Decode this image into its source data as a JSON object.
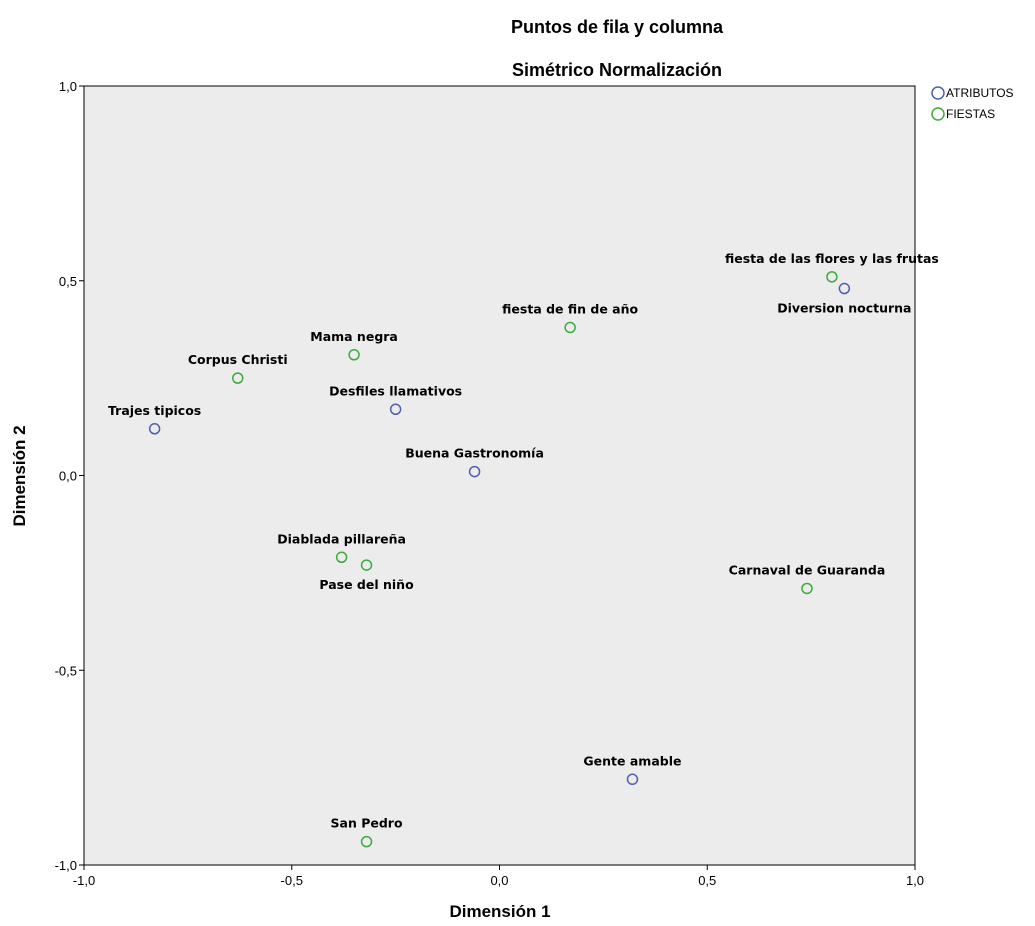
{
  "chart_data": {
    "type": "scatter",
    "title": "Puntos de fila y columna",
    "subtitle": "Simétrico Normalización",
    "xlabel": "Dimensión 1",
    "ylabel": "Dimensión 2",
    "xlim": [
      -1.0,
      1.0
    ],
    "ylim": [
      -1.0,
      1.0
    ],
    "x_ticks": [
      -1.0,
      -0.5,
      0.0,
      0.5,
      1.0
    ],
    "y_ticks": [
      -1.0,
      -0.5,
      0.0,
      0.5,
      1.0
    ],
    "x_tick_labels": [
      "-1,0",
      "-0,5",
      "0,0",
      "0,5",
      "1,0"
    ],
    "y_tick_labels": [
      "-1,0",
      "-0,5",
      "0,0",
      "0,5",
      "1,0"
    ],
    "grid": false,
    "legend_position": "top-right",
    "plot_background": "#ececec",
    "series": [
      {
        "name": "ATRIBUTOS",
        "color": "#4f5fae",
        "points": [
          {
            "label": "Trajes tipicos",
            "x": -0.83,
            "y": 0.12,
            "label_pos": "above"
          },
          {
            "label": "Desfiles llamativos",
            "x": -0.25,
            "y": 0.17,
            "label_pos": "above"
          },
          {
            "label": "Buena Gastronomía",
            "x": -0.06,
            "y": 0.01,
            "label_pos": "above"
          },
          {
            "label": "Diversion nocturna",
            "x": 0.83,
            "y": 0.48,
            "label_pos": "below"
          },
          {
            "label": "Gente amable",
            "x": 0.32,
            "y": -0.78,
            "label_pos": "above"
          }
        ]
      },
      {
        "name": "FIESTAS",
        "color": "#3daa3d",
        "points": [
          {
            "label": "Corpus Christi",
            "x": -0.63,
            "y": 0.25,
            "label_pos": "above"
          },
          {
            "label": "Mama negra",
            "x": -0.35,
            "y": 0.31,
            "label_pos": "above"
          },
          {
            "label": "fiesta de fin de año",
            "x": 0.17,
            "y": 0.38,
            "label_pos": "above"
          },
          {
            "label": "fiesta de las flores y las frutas",
            "x": 0.8,
            "y": 0.51,
            "label_pos": "above"
          },
          {
            "label": "Diablada pillareña",
            "x": -0.38,
            "y": -0.21,
            "label_pos": "above"
          },
          {
            "label": "Pase del niño",
            "x": -0.32,
            "y": -0.23,
            "label_pos": "below"
          },
          {
            "label": "Carnaval de Guaranda",
            "x": 0.74,
            "y": -0.29,
            "label_pos": "above"
          },
          {
            "label": "San Pedro",
            "x": -0.32,
            "y": -0.94,
            "label_pos": "above"
          }
        ]
      }
    ]
  }
}
